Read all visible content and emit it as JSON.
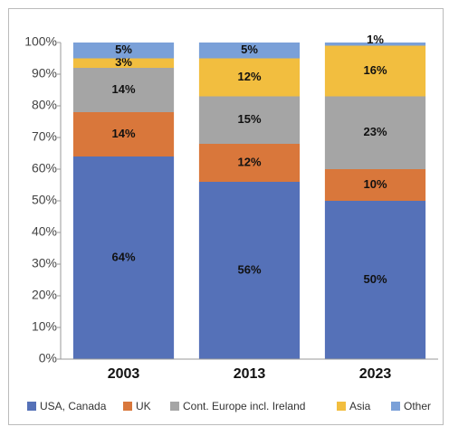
{
  "chart_data": {
    "type": "stacked_bar",
    "categories": [
      "2003",
      "2013",
      "2023"
    ],
    "series": [
      {
        "name": "USA, Canada",
        "color": "#5571b8",
        "values": [
          64,
          56,
          50
        ],
        "value_labels": [
          "64%",
          "56%",
          "50%"
        ]
      },
      {
        "name": "UK",
        "color": "#d9773b",
        "values": [
          14,
          12,
          10
        ],
        "value_labels": [
          "14%",
          "12%",
          "10%"
        ]
      },
      {
        "name": "Cont. Europe incl. Ireland",
        "color": "#a5a5a5",
        "values": [
          14,
          15,
          23
        ],
        "value_labels": [
          "14%",
          "15%",
          "23%"
        ]
      },
      {
        "name": "Asia",
        "color": "#f2be3f",
        "values": [
          3,
          12,
          16
        ],
        "value_labels": [
          "3%",
          "12%",
          "16%"
        ]
      },
      {
        "name": "Other",
        "color": "#7aa0d8",
        "values": [
          5,
          5,
          1
        ],
        "value_labels": [
          "5%",
          "5%",
          "1%"
        ]
      }
    ],
    "ylim": [
      0,
      100
    ],
    "yticks": [
      {
        "value": 0,
        "label": "0%"
      },
      {
        "value": 10,
        "label": "10%"
      },
      {
        "value": 20,
        "label": "20%"
      },
      {
        "value": 30,
        "label": "30%"
      },
      {
        "value": 40,
        "label": "40%"
      },
      {
        "value": 50,
        "label": "50%"
      },
      {
        "value": 60,
        "label": "60%"
      },
      {
        "value": 70,
        "label": "70%"
      },
      {
        "value": 80,
        "label": "80%"
      },
      {
        "value": 90,
        "label": "90%"
      },
      {
        "value": 100,
        "label": "100%"
      }
    ],
    "legend": "bottom"
  }
}
